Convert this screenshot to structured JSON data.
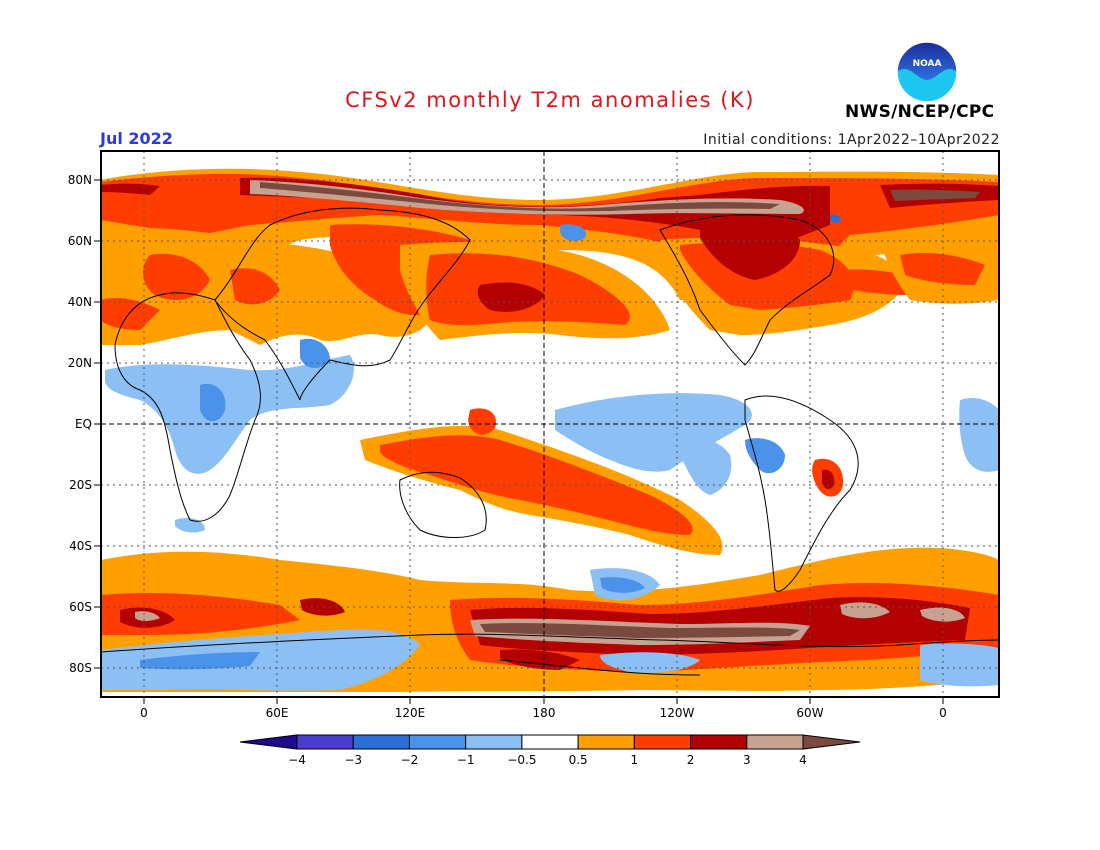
{
  "header": {
    "title": "CFSv2 monthly T2m anomalies (K)",
    "valid_month": "Jul 2022",
    "initial_conditions": "Initial conditions: 1Apr2022–10Apr2022",
    "agency": "NWS/NCEP/CPC",
    "logo_text": "NOAA"
  },
  "map": {
    "lat_labels": [
      "80N",
      "60N",
      "40N",
      "20N",
      "EQ",
      "20S",
      "40S",
      "60S",
      "80S"
    ],
    "lon_labels": [
      "0",
      "60E",
      "120E",
      "180",
      "120W",
      "60W",
      "0"
    ]
  },
  "colorbar": {
    "labels": [
      "−4",
      "−3",
      "−2",
      "−1",
      "−0.5",
      "0.5",
      "1",
      "2",
      "3",
      "4"
    ],
    "colors": [
      "#1e0a8c",
      "#4b3dd2",
      "#2b6fd6",
      "#4a92ea",
      "#8cc0f5",
      "#ffffff",
      "#ff9f00",
      "#ff3d00",
      "#b30000",
      "#c8a290",
      "#7a4a3e"
    ]
  }
}
